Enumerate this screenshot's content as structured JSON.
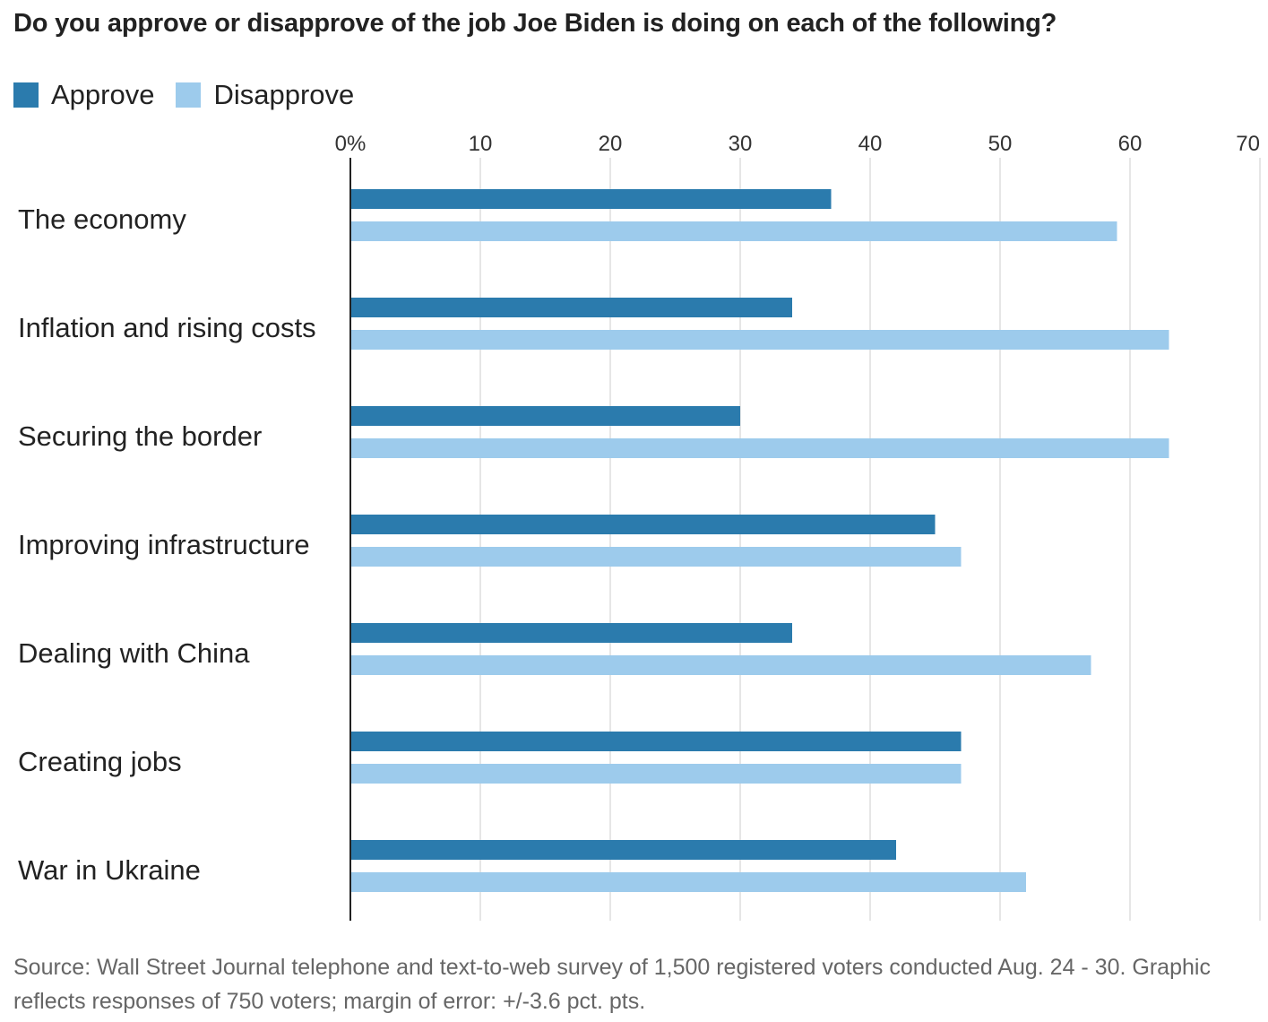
{
  "chart_data": {
    "type": "bar",
    "orientation": "horizontal",
    "title": "Do you approve or disapprove of the job Joe Biden is doing on each of the following?",
    "categories": [
      "The economy",
      "Inflation and rising costs",
      "Securing the border",
      "Improving infrastructure",
      "Dealing with China",
      "Creating jobs",
      "War in Ukraine"
    ],
    "series": [
      {
        "name": "Approve",
        "color": "#2b7bad",
        "values": [
          37,
          34,
          30,
          45,
          34,
          47,
          42
        ]
      },
      {
        "name": "Disapprove",
        "color": "#9dcbec",
        "values": [
          59,
          63,
          63,
          47,
          57,
          47,
          52
        ]
      }
    ],
    "xlim": [
      0,
      70
    ],
    "x_ticks": [
      0,
      10,
      20,
      30,
      40,
      50,
      60,
      70
    ],
    "x_tick_labels": [
      "0%",
      "10",
      "20",
      "30",
      "40",
      "50",
      "60",
      "70"
    ],
    "xlabel": "",
    "ylabel": "",
    "grid": true,
    "legend_position": "top-left",
    "axis_position": "top"
  },
  "source": "Source: Wall Street Journal telephone and text-to-web survey of 1,500 registered voters conducted Aug. 24 - 30. Graphic reflects responses of 750 voters; margin of error: +/-3.6 pct. pts."
}
